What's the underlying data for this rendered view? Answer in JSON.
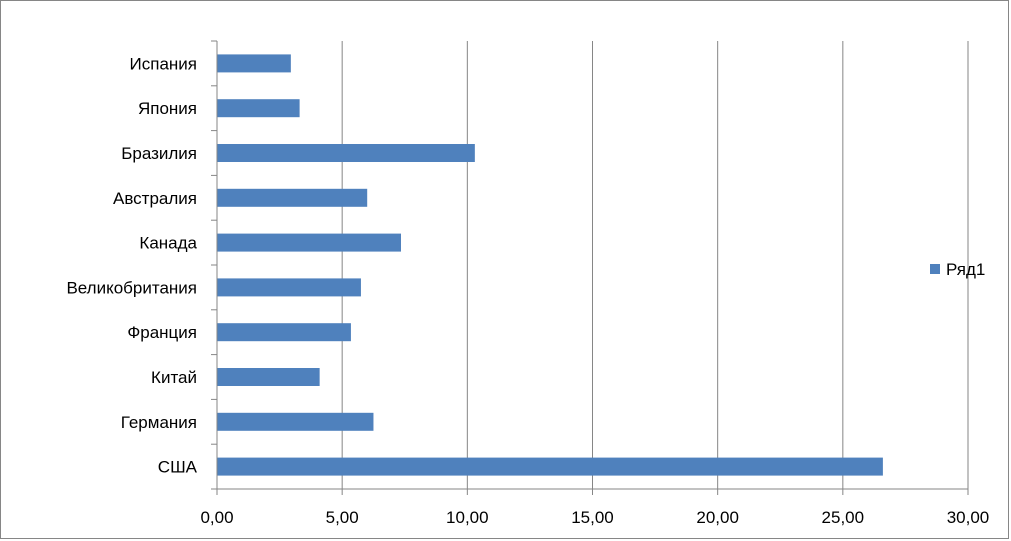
{
  "chart_data": {
    "type": "bar",
    "orientation": "horizontal",
    "categories": [
      "США",
      "Германия",
      "Китай",
      "Франция",
      "Великобритания",
      "Канада",
      "Австралия",
      "Бразилия",
      "Япония",
      "Испания"
    ],
    "series": [
      {
        "name": "Ряд1",
        "values": [
          26.6,
          6.25,
          4.1,
          5.35,
          5.75,
          7.35,
          6.0,
          10.3,
          3.3,
          2.95
        ],
        "color": "#4F81BD"
      }
    ],
    "xlim": [
      0,
      30
    ],
    "xticks": [
      0,
      5,
      10,
      15,
      20,
      25,
      30
    ],
    "xtick_labels": [
      "0,00",
      "5,00",
      "10,00",
      "15,00",
      "20,00",
      "25,00",
      "30,00"
    ],
    "grid": "vertical",
    "legend_position": "right",
    "title": "",
    "xlabel": "",
    "ylabel": ""
  }
}
